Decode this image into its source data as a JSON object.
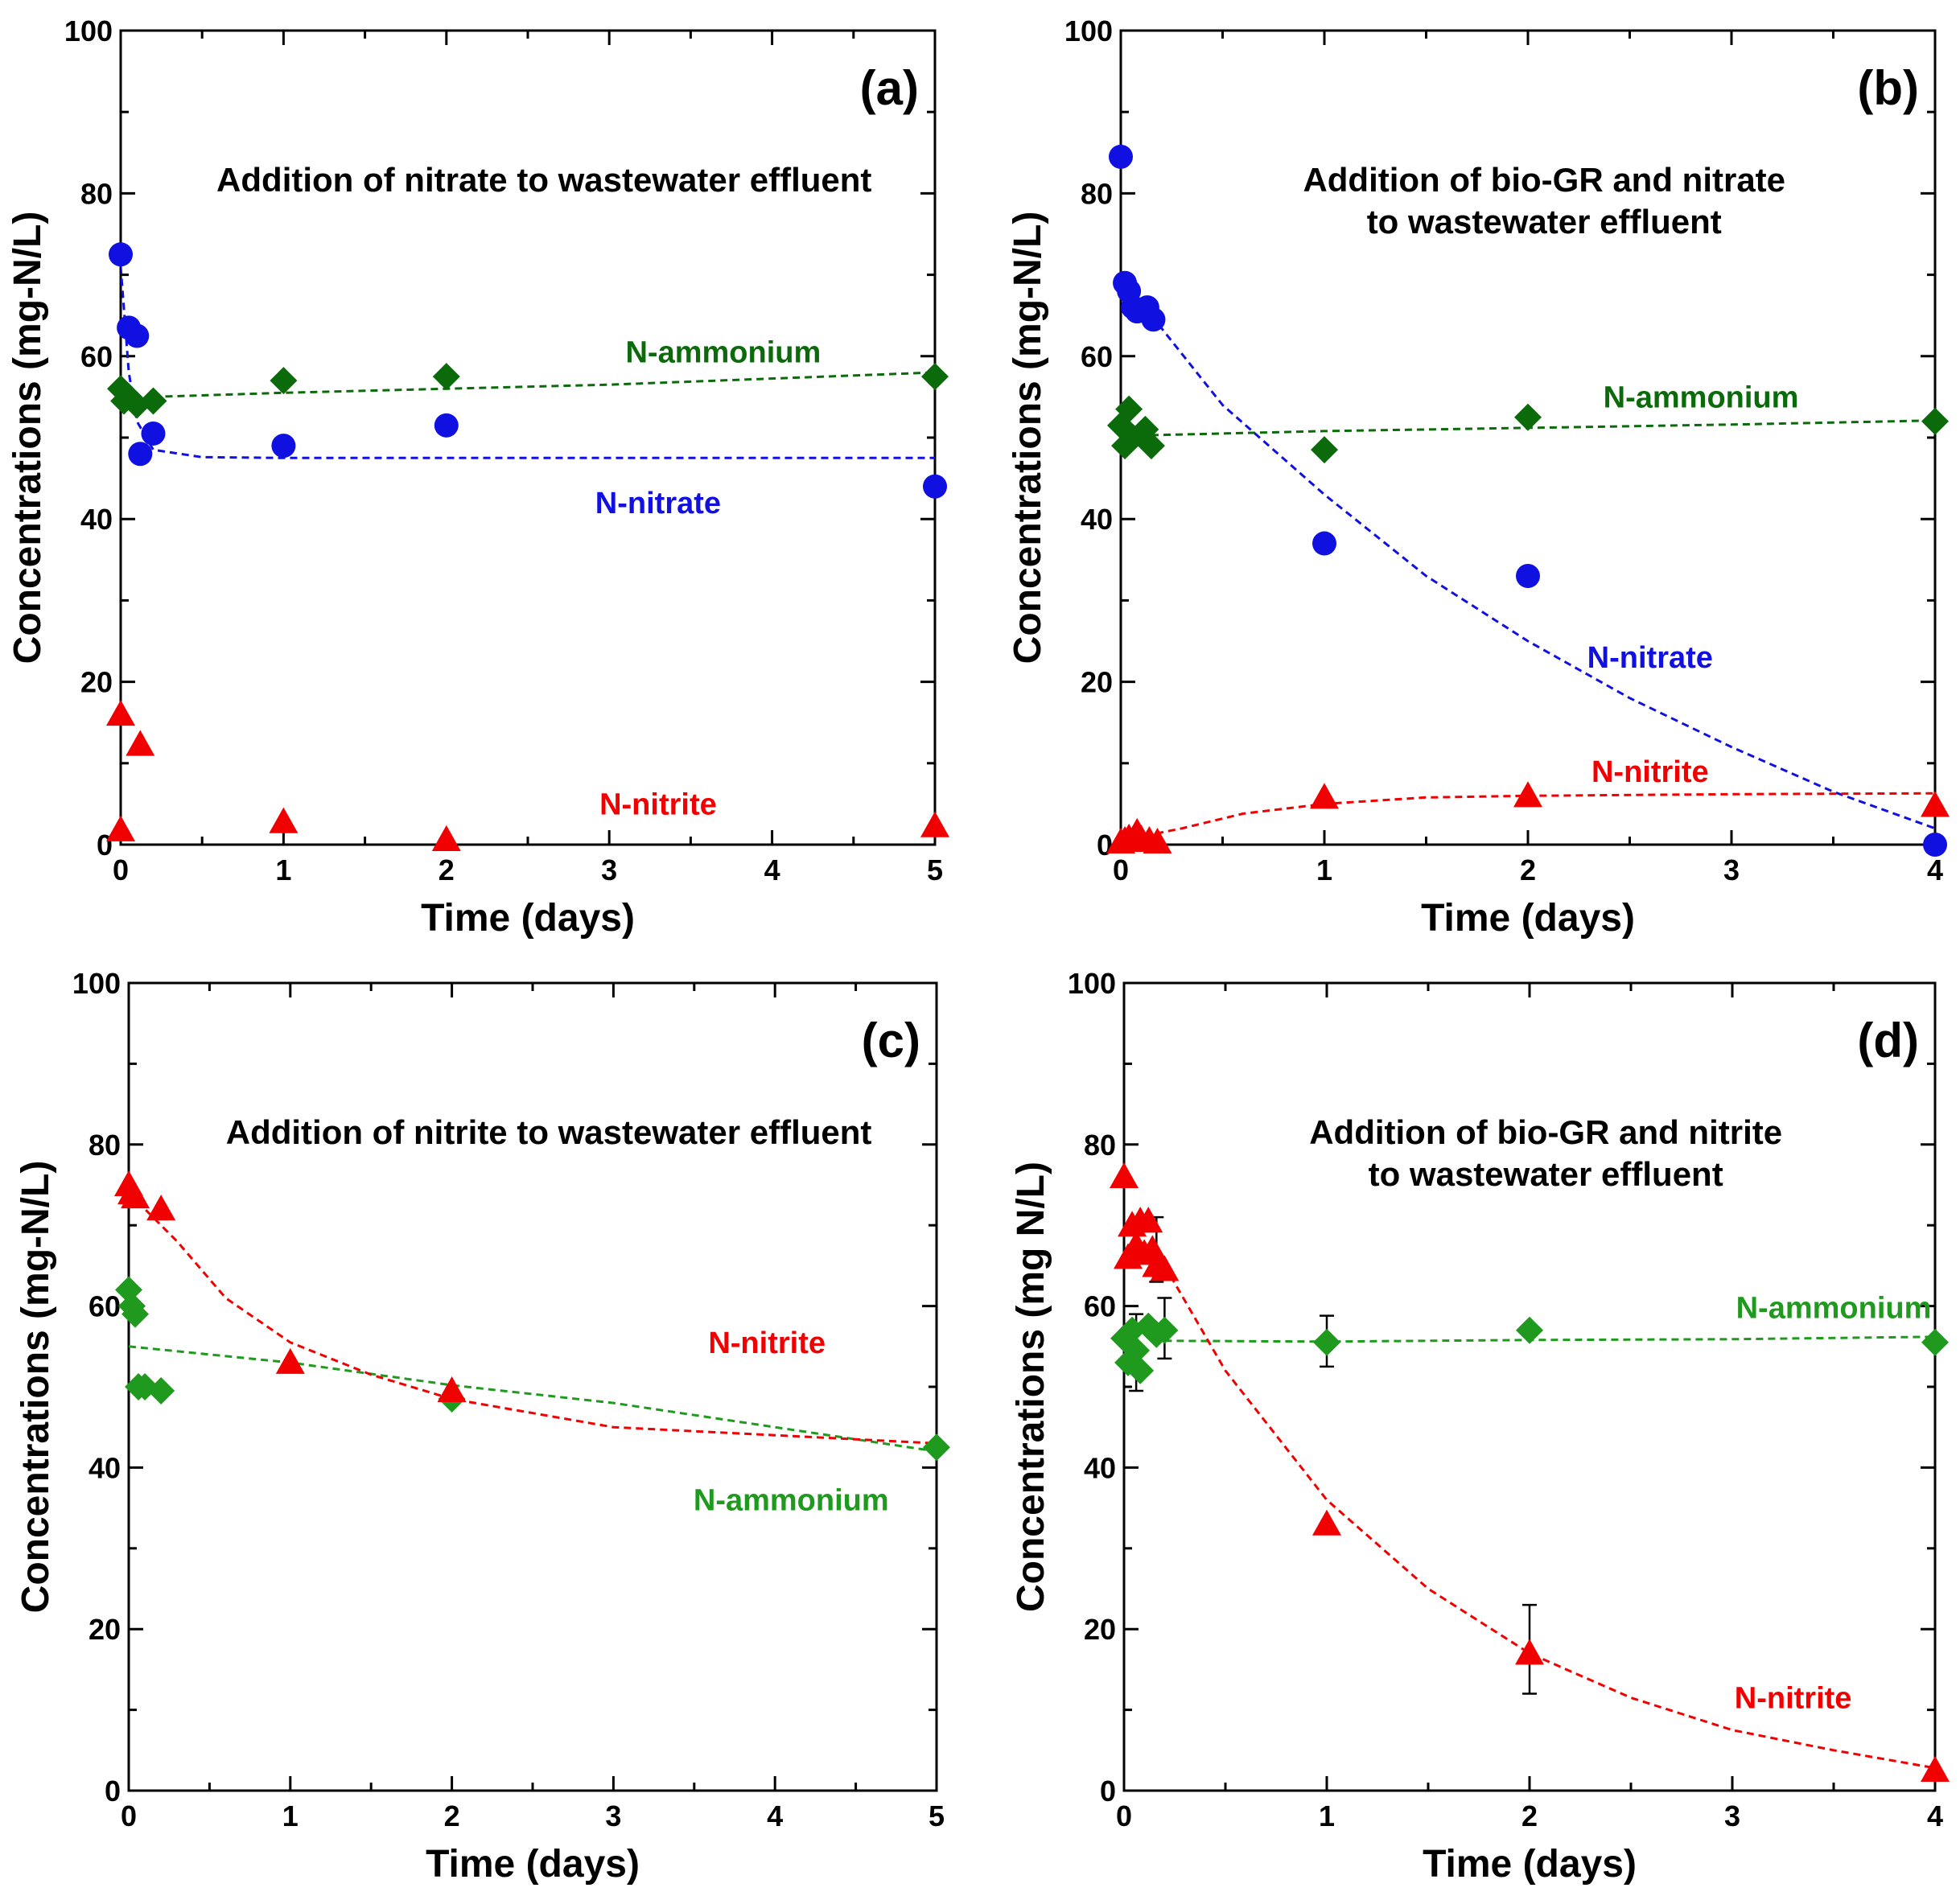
{
  "colors": {
    "nitrate": "#1010e0",
    "ammonium_dark": "#0b6b0b",
    "ammonium_light": "#1f9a1f",
    "nitrite": "#f00000",
    "axis": "#000000"
  },
  "chart_data": [
    {
      "type": "scatter",
      "panel": "(a)",
      "title_lines": [
        "Addition of nitrate to wastewater effluent"
      ],
      "xlabel": "Time (days)",
      "ylabel": "Concentrations (mg-N/L)",
      "xlim": [
        0,
        5
      ],
      "ylim": [
        0,
        100
      ],
      "xticks": [
        "0",
        "1",
        "2",
        "3",
        "4",
        "5"
      ],
      "yticks": [
        "0",
        "20",
        "40",
        "60",
        "80",
        "100"
      ],
      "series": [
        {
          "name": "N-ammonium",
          "marker": "diamond",
          "color_key": "ammonium_dark",
          "x": [
            0,
            0.02,
            0.05,
            0.1,
            0.2,
            1,
            2,
            5
          ],
          "y": [
            56,
            54.5,
            55,
            54,
            54.5,
            57,
            57.5,
            57.5
          ],
          "fit": [
            [
              0.2,
              55
            ],
            [
              1,
              55.5
            ],
            [
              2,
              56
            ],
            [
              3,
              56.5
            ],
            [
              5,
              58
            ]
          ],
          "label_at": [
            3.7,
            60.5
          ]
        },
        {
          "name": "N-nitrate",
          "marker": "circle",
          "color_key": "nitrate",
          "x": [
            0,
            0.05,
            0.1,
            0.12,
            0.2,
            1,
            2,
            5
          ],
          "y": [
            72.5,
            63.5,
            62.5,
            48,
            50.5,
            49,
            51.5,
            44
          ],
          "fit": [
            [
              0,
              71
            ],
            [
              0.05,
              58
            ],
            [
              0.1,
              52
            ],
            [
              0.2,
              48.5
            ],
            [
              0.5,
              47.6
            ],
            [
              1,
              47.5
            ],
            [
              5,
              47.5
            ]
          ],
          "label_at": [
            3.3,
            42
          ]
        },
        {
          "name": "N-nitrite",
          "marker": "triangle",
          "color_key": "nitrite",
          "x": [
            0,
            0,
            0.12,
            1,
            2,
            5
          ],
          "y": [
            16,
            1.8,
            12.3,
            2.8,
            0.6,
            2.3
          ],
          "fit": [],
          "label_at": [
            3.3,
            5
          ]
        }
      ],
      "error_bars": []
    },
    {
      "type": "scatter",
      "panel": "(b)",
      "title_lines": [
        "Addition of bio-GR and nitrate",
        "to wastewater effluent"
      ],
      "xlabel": "Time (days)",
      "ylabel": "Concentrations (mg-N/L)",
      "xlim": [
        0,
        4
      ],
      "ylim": [
        0,
        100
      ],
      "xticks": [
        "0",
        "1",
        "2",
        "3",
        "4"
      ],
      "yticks": [
        "0",
        "20",
        "40",
        "60",
        "80",
        "100"
      ],
      "series": [
        {
          "name": "N-ammonium",
          "marker": "diamond",
          "color_key": "ammonium_dark",
          "x": [
            0,
            0.02,
            0.04,
            0.06,
            0.1,
            0.12,
            0.15,
            1,
            2,
            4
          ],
          "y": [
            51.5,
            49,
            53.5,
            50,
            50.5,
            51,
            49,
            48.5,
            52.5,
            52
          ],
          "fit": [
            [
              0.15,
              50.3
            ],
            [
              1,
              50.8
            ],
            [
              2,
              51.2
            ],
            [
              3,
              51.6
            ],
            [
              4,
              52.1
            ]
          ],
          "label_at": [
            2.85,
            55
          ]
        },
        {
          "name": "N-nitrate",
          "marker": "circle",
          "color_key": "nitrate",
          "x": [
            0,
            0.02,
            0.04,
            0.06,
            0.08,
            0.13,
            0.16,
            1,
            2,
            4
          ],
          "y": [
            84.5,
            69,
            68,
            66,
            65.5,
            66,
            64.5,
            37,
            33,
            0
          ],
          "fit": [
            [
              0.15,
              65
            ],
            [
              0.5,
              54
            ],
            [
              1,
              43
            ],
            [
              1.5,
              33
            ],
            [
              2,
              25
            ],
            [
              2.5,
              18
            ],
            [
              3,
              12
            ],
            [
              3.5,
              6.5
            ],
            [
              4,
              2
            ]
          ],
          "label_at": [
            2.6,
            23
          ]
        },
        {
          "name": "N-nitrite",
          "marker": "triangle",
          "color_key": "nitrite",
          "x": [
            0,
            0.02,
            0.04,
            0.06,
            0.08,
            0.1,
            0.14,
            0.18,
            1,
            2,
            4
          ],
          "y": [
            0.3,
            0.5,
            0.8,
            0.6,
            1.5,
            0.7,
            0.5,
            0.3,
            5.8,
            6,
            4.8
          ],
          "fit": [
            [
              0,
              0.5
            ],
            [
              0.3,
              2
            ],
            [
              0.6,
              3.8
            ],
            [
              1,
              5
            ],
            [
              1.5,
              5.8
            ],
            [
              2,
              6
            ],
            [
              3,
              6.2
            ],
            [
              4,
              6.3
            ]
          ],
          "label_at": [
            2.6,
            9
          ]
        }
      ],
      "error_bars": []
    },
    {
      "type": "scatter",
      "panel": "(c)",
      "title_lines": [
        "Addition of nitrite to wastewater effluent"
      ],
      "xlabel": "Time (days)",
      "ylabel": "Concentrations (mg-N/L)",
      "xlim": [
        0,
        5
      ],
      "ylim": [
        0,
        100
      ],
      "xticks": [
        "0",
        "1",
        "2",
        "3",
        "4",
        "5"
      ],
      "yticks": [
        "0",
        "20",
        "40",
        "60",
        "80",
        "100"
      ],
      "series": [
        {
          "name": "N-ammonium",
          "marker": "diamond",
          "color_key": "ammonium_light",
          "x": [
            0,
            0.02,
            0.04,
            0.06,
            0.1,
            0.2,
            2,
            5
          ],
          "y": [
            62,
            60,
            59,
            50,
            50,
            49.5,
            48.5,
            42.5
          ],
          "fit": [
            [
              0,
              55
            ],
            [
              1,
              53
            ],
            [
              2,
              50.2
            ],
            [
              3,
              48
            ],
            [
              4,
              45
            ],
            [
              5,
              42
            ]
          ],
          "label_at": [
            4.1,
            36
          ]
        },
        {
          "name": "N-nitrite",
          "marker": "triangle",
          "color_key": "nitrite",
          "x": [
            0,
            0.02,
            0.04,
            0.2,
            1,
            2
          ],
          "y": [
            75,
            74,
            73.5,
            72,
            53,
            49.5
          ],
          "fit": [
            [
              0,
              74
            ],
            [
              0.3,
              68
            ],
            [
              0.6,
              61
            ],
            [
              1,
              55.5
            ],
            [
              1.5,
              51.5
            ],
            [
              2,
              48.5
            ],
            [
              3,
              45
            ],
            [
              4,
              44
            ],
            [
              5,
              43
            ]
          ],
          "label_at": [
            3.95,
            55.5
          ]
        }
      ],
      "error_bars": []
    },
    {
      "type": "scatter",
      "panel": "(d)",
      "title_lines": [
        "Addition of bio-GR and nitrite",
        "to wastewater effluent"
      ],
      "xlabel": "Time (days)",
      "ylabel": "Concentrations (mg N/L)",
      "xlim": [
        0,
        4
      ],
      "ylim": [
        0,
        100
      ],
      "xticks": [
        "0",
        "1",
        "2",
        "3",
        "4"
      ],
      "yticks": [
        "0",
        "20",
        "40",
        "60",
        "80",
        "100"
      ],
      "series": [
        {
          "name": "N-ammonium",
          "marker": "diamond",
          "color_key": "ammonium_light",
          "x": [
            0,
            0.02,
            0.04,
            0.06,
            0.08,
            0.12,
            0.16,
            0.2,
            1,
            2,
            4
          ],
          "y": [
            56,
            53,
            57,
            54.5,
            52,
            57.5,
            56.5,
            57,
            55.5,
            57,
            55.5
          ],
          "fit": [
            [
              0.2,
              55.7
            ],
            [
              1,
              55.6
            ],
            [
              2,
              55.8
            ],
            [
              3,
              55.9
            ],
            [
              4,
              56.2
            ]
          ],
          "label_at": [
            3.5,
            59.8
          ]
        },
        {
          "name": "N-nitrite",
          "marker": "triangle",
          "color_key": "nitrite",
          "x": [
            0,
            0.02,
            0.04,
            0.06,
            0.08,
            0.1,
            0.12,
            0.14,
            0.16,
            0.2,
            1,
            2,
            4
          ],
          "y": [
            76,
            66,
            70,
            67.5,
            70.5,
            66.5,
            70.5,
            67,
            65,
            64.5,
            33,
            17,
            2.5
          ],
          "fit": [
            [
              0.2,
              65
            ],
            [
              0.5,
              52
            ],
            [
              1,
              36
            ],
            [
              1.5,
              25
            ],
            [
              2,
              17
            ],
            [
              2.5,
              11.5
            ],
            [
              3,
              7.5
            ],
            [
              3.5,
              5
            ],
            [
              4,
              2.8
            ]
          ],
          "label_at": [
            3.3,
            11.5
          ]
        }
      ],
      "error_bars": [
        {
          "x": 0.06,
          "y": 54.5,
          "lo": 49.5,
          "hi": 59
        },
        {
          "x": 0.2,
          "y": 57,
          "lo": 53.5,
          "hi": 61
        },
        {
          "x": 0.16,
          "y": 67,
          "lo": 63,
          "hi": 71
        },
        {
          "x": 1,
          "y": 55.5,
          "lo": 52.5,
          "hi": 58.8
        },
        {
          "x": 2,
          "y": 17,
          "lo": 12,
          "hi": 23
        }
      ]
    }
  ]
}
